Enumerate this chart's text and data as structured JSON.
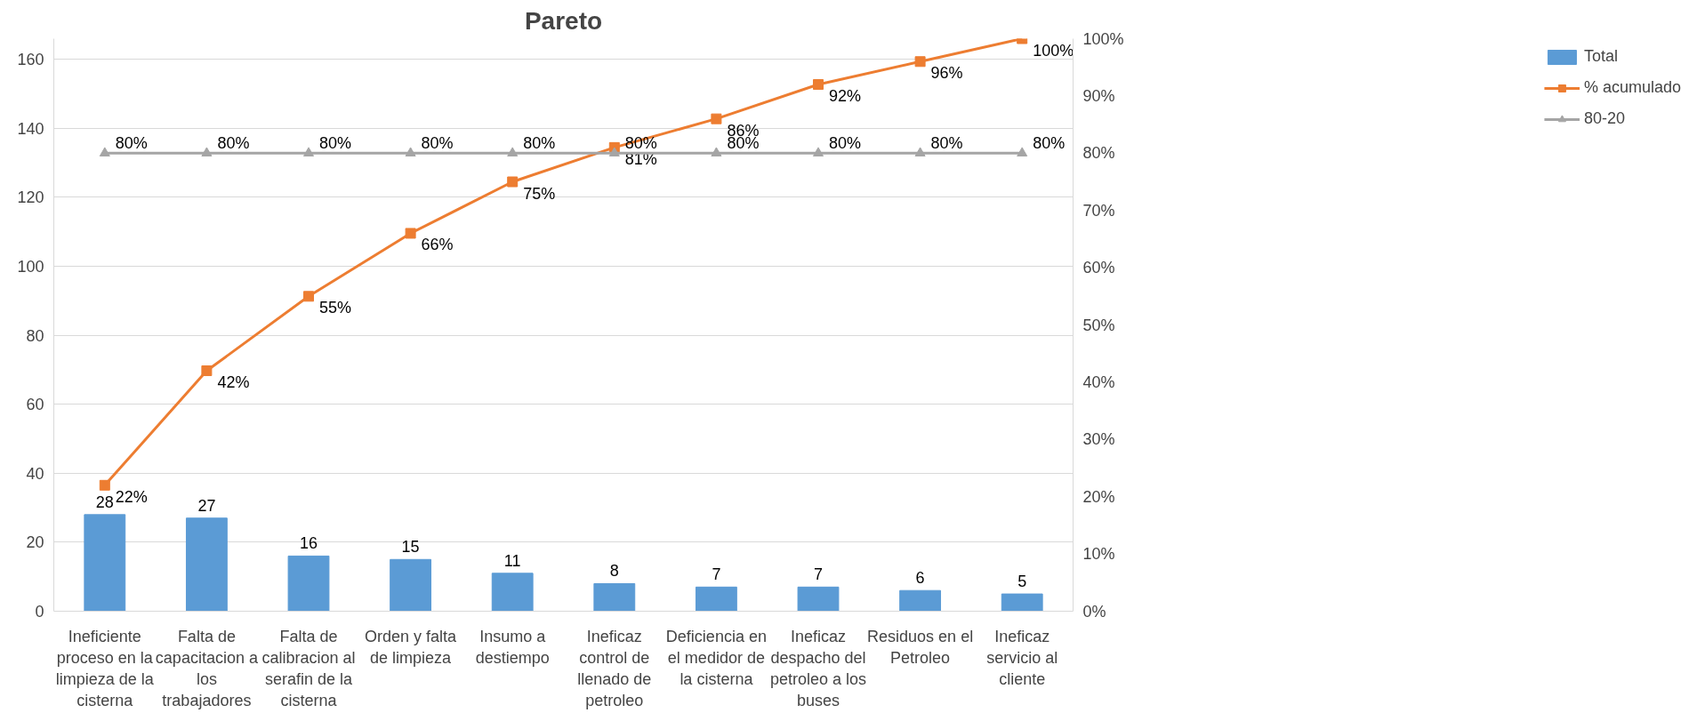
{
  "chart_data": {
    "type": "bar",
    "title": "Pareto",
    "categories": [
      "Ineficiente proceso en la limpieza de la cisterna",
      "Falta de capacitacion a los trabajadores",
      "Falta de calibracion al serafin de la cisterna",
      "Orden y falta de limpieza",
      "Insumo a destiempo",
      "Ineficaz control de llenado de petroleo",
      "Deficiencia en el medidor de la cisterna",
      "Ineficaz despacho del petroleo a los buses",
      "Residuos en el Petroleo",
      "Ineficaz servicio al cliente"
    ],
    "series": [
      {
        "name": "Total",
        "color": "#5b9bd5",
        "values": [
          28,
          27,
          16,
          15,
          11,
          8,
          7,
          7,
          6,
          5
        ],
        "value_labels": [
          "28",
          "27",
          "16",
          "15",
          "11",
          "8",
          "7",
          "7",
          "6",
          "5"
        ]
      },
      {
        "name": "% acumulado",
        "type": "line",
        "axis": "y2",
        "marker": "square",
        "color": "#ed7d31",
        "values": [
          22,
          42,
          55,
          66,
          75,
          81,
          86,
          92,
          96,
          100
        ],
        "value_labels": [
          "22%",
          "42%",
          "55%",
          "66%",
          "75%",
          "81%",
          "86%",
          "92%",
          "96%",
          "100%"
        ]
      },
      {
        "name": "80-20",
        "type": "line",
        "axis": "y2",
        "marker": "triangle",
        "color": "#a5a5a5",
        "values": [
          80,
          80,
          80,
          80,
          80,
          80,
          80,
          80,
          80,
          80
        ],
        "value_labels": [
          "80%",
          "80%",
          "80%",
          "80%",
          "80%",
          "80%",
          "80%",
          "80%",
          "80%",
          "80%"
        ]
      }
    ],
    "ylim": [
      0,
      166
    ],
    "yticks": [
      0,
      20,
      40,
      60,
      80,
      100,
      120,
      140,
      160
    ],
    "y2lim": [
      0,
      100
    ],
    "y2ticks": [
      {
        "value": 0,
        "label": "0%"
      },
      {
        "value": 10,
        "label": "10%"
      },
      {
        "value": 20,
        "label": "20%"
      },
      {
        "value": 30,
        "label": "30%"
      },
      {
        "value": 40,
        "label": "40%"
      },
      {
        "value": 50,
        "label": "50%"
      },
      {
        "value": 60,
        "label": "60%"
      },
      {
        "value": 70,
        "label": "70%"
      },
      {
        "value": 80,
        "label": "80%"
      },
      {
        "value": 90,
        "label": "90%"
      },
      {
        "value": 100,
        "label": "100%"
      }
    ],
    "grid": "y",
    "legend": "right"
  }
}
